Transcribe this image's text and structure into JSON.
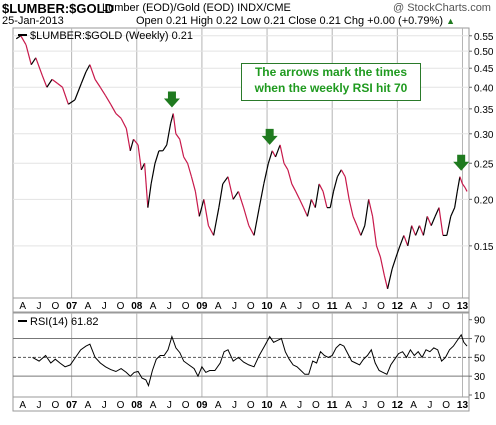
{
  "header": {
    "symbol": "$LUMBER:$GOLD",
    "description": "Lumber (EOD)/Gold (EOD)  INDX/CME",
    "watermark": "@ StockCharts.com",
    "date": "25-Jan-2013",
    "ohlc": "Open 0.21  High 0.22  Low 0.21  Close 0.21  Chg +0.00 (+0.79%)",
    "up_arrow": "▲"
  },
  "legend": {
    "main": "$LUMBER:$GOLD (Weekly) 0.21",
    "rsi": "RSI(14) 61.82"
  },
  "annotation": {
    "line1": "The arrows mark the times",
    "line2": "when the weekly RSI hit 70"
  },
  "colors": {
    "price_up": "#000000",
    "price_down": "#c8194b",
    "arrow": "#1f7a1f",
    "annotation_text": "#1f9a1f",
    "grid": "#b4b4b4",
    "rsi_line": "#000000"
  },
  "chart_data": [
    {
      "type": "line",
      "title": "$LUMBER:$GOLD (Weekly) 0.21",
      "y_scale": "log",
      "ylim": [
        0.11,
        0.57
      ],
      "y_ticks": [
        0.15,
        0.2,
        0.25,
        0.3,
        0.35,
        0.4,
        0.45,
        0.5,
        0.55
      ],
      "y_tick_labels": [
        "0.15",
        "0.20",
        "0.25",
        "0.30",
        "0.35",
        "0.40",
        "0.45",
        "0.50",
        "0.55"
      ],
      "x_ticks": [
        {
          "x": 2006.25,
          "label": "A"
        },
        {
          "x": 2006.5,
          "label": "J"
        },
        {
          "x": 2006.75,
          "label": "O"
        },
        {
          "x": 2007.0,
          "label": "07"
        },
        {
          "x": 2007.25,
          "label": "A"
        },
        {
          "x": 2007.5,
          "label": "J"
        },
        {
          "x": 2007.75,
          "label": "O"
        },
        {
          "x": 2008.0,
          "label": "08"
        },
        {
          "x": 2008.25,
          "label": "A"
        },
        {
          "x": 2008.5,
          "label": "J"
        },
        {
          "x": 2008.75,
          "label": "O"
        },
        {
          "x": 2009.0,
          "label": "09"
        },
        {
          "x": 2009.25,
          "label": "A"
        },
        {
          "x": 2009.5,
          "label": "J"
        },
        {
          "x": 2009.75,
          "label": "O"
        },
        {
          "x": 2010.0,
          "label": "10"
        },
        {
          "x": 2010.25,
          "label": "A"
        },
        {
          "x": 2010.5,
          "label": "J"
        },
        {
          "x": 2010.75,
          "label": "O"
        },
        {
          "x": 2011.0,
          "label": "11"
        },
        {
          "x": 2011.25,
          "label": "A"
        },
        {
          "x": 2011.5,
          "label": "J"
        },
        {
          "x": 2011.75,
          "label": "O"
        },
        {
          "x": 2012.0,
          "label": "12"
        },
        {
          "x": 2012.25,
          "label": "A"
        },
        {
          "x": 2012.5,
          "label": "J"
        },
        {
          "x": 2012.75,
          "label": "O"
        },
        {
          "x": 2013.0,
          "label": "13"
        }
      ],
      "xlim": [
        2006.1,
        2013.1
      ],
      "series": [
        {
          "name": "$LUMBER:$GOLD (Weekly)",
          "points": [
            [
              2006.15,
              0.54
            ],
            [
              2006.22,
              0.55
            ],
            [
              2006.3,
              0.52
            ],
            [
              2006.38,
              0.46
            ],
            [
              2006.45,
              0.48
            ],
            [
              2006.55,
              0.43
            ],
            [
              2006.62,
              0.4
            ],
            [
              2006.7,
              0.42
            ],
            [
              2006.78,
              0.41
            ],
            [
              2006.86,
              0.4
            ],
            [
              2006.95,
              0.36
            ],
            [
              2007.05,
              0.37
            ],
            [
              2007.15,
              0.41
            ],
            [
              2007.22,
              0.44
            ],
            [
              2007.28,
              0.46
            ],
            [
              2007.36,
              0.42
            ],
            [
              2007.44,
              0.4
            ],
            [
              2007.52,
              0.38
            ],
            [
              2007.6,
              0.36
            ],
            [
              2007.68,
              0.34
            ],
            [
              2007.76,
              0.33
            ],
            [
              2007.84,
              0.31
            ],
            [
              2007.9,
              0.27
            ],
            [
              2007.95,
              0.29
            ],
            [
              2008.02,
              0.28
            ],
            [
              2008.07,
              0.24
            ],
            [
              2008.12,
              0.25
            ],
            [
              2008.17,
              0.19
            ],
            [
              2008.22,
              0.22
            ],
            [
              2008.28,
              0.25
            ],
            [
              2008.34,
              0.27
            ],
            [
              2008.4,
              0.27
            ],
            [
              2008.46,
              0.28
            ],
            [
              2008.52,
              0.32
            ],
            [
              2008.56,
              0.34
            ],
            [
              2008.6,
              0.3
            ],
            [
              2008.66,
              0.29
            ],
            [
              2008.72,
              0.26
            ],
            [
              2008.78,
              0.25
            ],
            [
              2008.84,
              0.23
            ],
            [
              2008.9,
              0.21
            ],
            [
              2008.96,
              0.18
            ],
            [
              2009.03,
              0.2
            ],
            [
              2009.1,
              0.17
            ],
            [
              2009.18,
              0.16
            ],
            [
              2009.26,
              0.19
            ],
            [
              2009.32,
              0.22
            ],
            [
              2009.4,
              0.23
            ],
            [
              2009.48,
              0.2
            ],
            [
              2009.56,
              0.21
            ],
            [
              2009.64,
              0.19
            ],
            [
              2009.72,
              0.17
            ],
            [
              2009.8,
              0.16
            ],
            [
              2009.88,
              0.19
            ],
            [
              2009.95,
              0.22
            ],
            [
              2010.02,
              0.25
            ],
            [
              2010.08,
              0.27
            ],
            [
              2010.13,
              0.26
            ],
            [
              2010.2,
              0.28
            ],
            [
              2010.26,
              0.25
            ],
            [
              2010.32,
              0.24
            ],
            [
              2010.38,
              0.22
            ],
            [
              2010.44,
              0.21
            ],
            [
              2010.5,
              0.2
            ],
            [
              2010.56,
              0.19
            ],
            [
              2010.62,
              0.18
            ],
            [
              2010.68,
              0.2
            ],
            [
              2010.74,
              0.19
            ],
            [
              2010.8,
              0.22
            ],
            [
              2010.86,
              0.21
            ],
            [
              2010.92,
              0.19
            ],
            [
              2010.97,
              0.19
            ],
            [
              2011.02,
              0.21
            ],
            [
              2011.08,
              0.23
            ],
            [
              2011.14,
              0.24
            ],
            [
              2011.2,
              0.23
            ],
            [
              2011.26,
              0.2
            ],
            [
              2011.32,
              0.18
            ],
            [
              2011.38,
              0.17
            ],
            [
              2011.44,
              0.16
            ],
            [
              2011.5,
              0.17
            ],
            [
              2011.56,
              0.2
            ],
            [
              2011.62,
              0.18
            ],
            [
              2011.68,
              0.15
            ],
            [
              2011.74,
              0.14
            ],
            [
              2011.8,
              0.125
            ],
            [
              2011.85,
              0.115
            ],
            [
              2011.92,
              0.13
            ],
            [
              2011.98,
              0.14
            ],
            [
              2012.04,
              0.15
            ],
            [
              2012.1,
              0.16
            ],
            [
              2012.16,
              0.15
            ],
            [
              2012.22,
              0.17
            ],
            [
              2012.28,
              0.16
            ],
            [
              2012.34,
              0.17
            ],
            [
              2012.4,
              0.16
            ],
            [
              2012.46,
              0.18
            ],
            [
              2012.52,
              0.17
            ],
            [
              2012.58,
              0.18
            ],
            [
              2012.64,
              0.19
            ],
            [
              2012.7,
              0.16
            ],
            [
              2012.76,
              0.16
            ],
            [
              2012.82,
              0.18
            ],
            [
              2012.88,
              0.19
            ],
            [
              2012.92,
              0.21
            ],
            [
              2012.96,
              0.23
            ],
            [
              2013.0,
              0.22
            ],
            [
              2013.04,
              0.215
            ],
            [
              2013.07,
              0.21
            ]
          ]
        }
      ],
      "annotations": [
        {
          "type": "arrow",
          "x": 2008.54,
          "points": "down"
        },
        {
          "type": "arrow",
          "x": 2010.04,
          "points": "down"
        },
        {
          "type": "arrow",
          "x": 2012.98,
          "points": "down"
        }
      ]
    },
    {
      "type": "line",
      "title": "RSI(14) 61.82",
      "ylim": [
        10,
        95
      ],
      "y_ticks": [
        10,
        30,
        50,
        70,
        90
      ],
      "y_tick_labels": [
        "10",
        "30",
        "50",
        "70",
        "90"
      ],
      "reference_lines": [
        30,
        50,
        70
      ],
      "xlim": [
        2006.1,
        2013.1
      ],
      "series": [
        {
          "name": "RSI(14)",
          "points": [
            [
              2006.4,
              50
            ],
            [
              2006.5,
              46
            ],
            [
              2006.6,
              52
            ],
            [
              2006.68,
              44
            ],
            [
              2006.75,
              48
            ],
            [
              2006.82,
              44
            ],
            [
              2006.9,
              40
            ],
            [
              2006.98,
              42
            ],
            [
              2007.06,
              50
            ],
            [
              2007.14,
              58
            ],
            [
              2007.22,
              62
            ],
            [
              2007.28,
              64
            ],
            [
              2007.36,
              50
            ],
            [
              2007.44,
              44
            ],
            [
              2007.52,
              40
            ],
            [
              2007.6,
              37
            ],
            [
              2007.68,
              35
            ],
            [
              2007.76,
              38
            ],
            [
              2007.84,
              34
            ],
            [
              2007.9,
              30
            ],
            [
              2007.96,
              34
            ],
            [
              2008.02,
              35
            ],
            [
              2008.08,
              28
            ],
            [
              2008.14,
              26
            ],
            [
              2008.18,
              20
            ],
            [
              2008.24,
              36
            ],
            [
              2008.3,
              48
            ],
            [
              2008.36,
              52
            ],
            [
              2008.42,
              52
            ],
            [
              2008.48,
              58
            ],
            [
              2008.54,
              72
            ],
            [
              2008.6,
              60
            ],
            [
              2008.66,
              55
            ],
            [
              2008.72,
              46
            ],
            [
              2008.8,
              42
            ],
            [
              2008.88,
              38
            ],
            [
              2008.94,
              30
            ],
            [
              2009.0,
              40
            ],
            [
              2009.06,
              34
            ],
            [
              2009.12,
              36
            ],
            [
              2009.2,
              36
            ],
            [
              2009.28,
              44
            ],
            [
              2009.34,
              56
            ],
            [
              2009.4,
              58
            ],
            [
              2009.48,
              46
            ],
            [
              2009.56,
              50
            ],
            [
              2009.64,
              45
            ],
            [
              2009.72,
              42
            ],
            [
              2009.8,
              40
            ],
            [
              2009.88,
              52
            ],
            [
              2009.96,
              62
            ],
            [
              2010.04,
              72
            ],
            [
              2010.1,
              66
            ],
            [
              2010.16,
              68
            ],
            [
              2010.22,
              70
            ],
            [
              2010.28,
              56
            ],
            [
              2010.34,
              48
            ],
            [
              2010.4,
              42
            ],
            [
              2010.46,
              40
            ],
            [
              2010.52,
              36
            ],
            [
              2010.58,
              32
            ],
            [
              2010.64,
              32
            ],
            [
              2010.7,
              46
            ],
            [
              2010.76,
              44
            ],
            [
              2010.82,
              56
            ],
            [
              2010.88,
              52
            ],
            [
              2010.94,
              50
            ],
            [
              2011.0,
              52
            ],
            [
              2011.06,
              60
            ],
            [
              2011.12,
              64
            ],
            [
              2011.18,
              62
            ],
            [
              2011.24,
              54
            ],
            [
              2011.3,
              46
            ],
            [
              2011.36,
              44
            ],
            [
              2011.42,
              42
            ],
            [
              2011.48,
              48
            ],
            [
              2011.54,
              52
            ],
            [
              2011.6,
              58
            ],
            [
              2011.66,
              44
            ],
            [
              2011.72,
              36
            ],
            [
              2011.78,
              34
            ],
            [
              2011.84,
              32
            ],
            [
              2011.9,
              42
            ],
            [
              2011.96,
              48
            ],
            [
              2012.02,
              54
            ],
            [
              2012.08,
              56
            ],
            [
              2012.14,
              50
            ],
            [
              2012.2,
              58
            ],
            [
              2012.26,
              52
            ],
            [
              2012.32,
              56
            ],
            [
              2012.38,
              50
            ],
            [
              2012.44,
              58
            ],
            [
              2012.5,
              56
            ],
            [
              2012.56,
              60
            ],
            [
              2012.62,
              58
            ],
            [
              2012.68,
              46
            ],
            [
              2012.74,
              50
            ],
            [
              2012.8,
              58
            ],
            [
              2012.86,
              62
            ],
            [
              2012.92,
              68
            ],
            [
              2012.98,
              74
            ],
            [
              2013.02,
              66
            ],
            [
              2013.07,
              62
            ]
          ]
        }
      ]
    }
  ]
}
